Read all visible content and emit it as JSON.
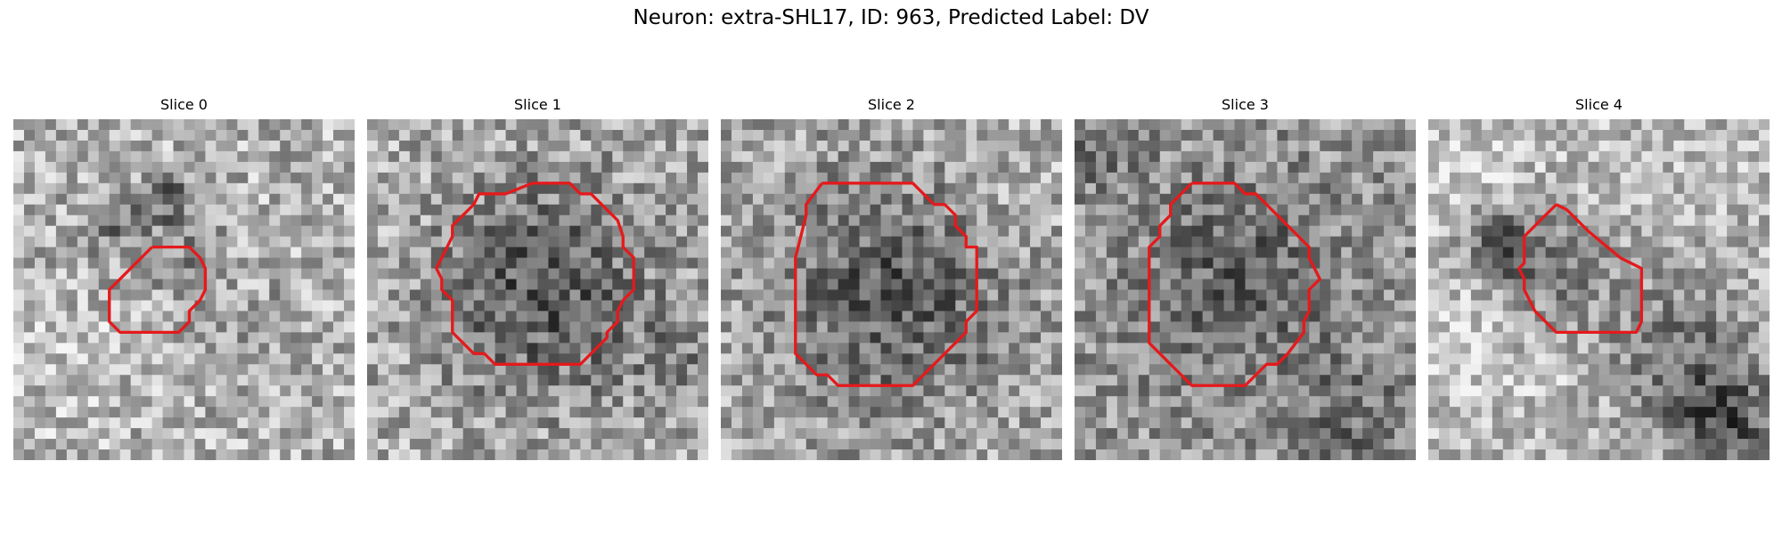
{
  "figure": {
    "title": "Neuron: extra-SHL17, ID: 963, Predicted Label: DV"
  },
  "panels": [
    {
      "title": "Slice 0"
    },
    {
      "title": "Slice 1"
    },
    {
      "title": "Slice 2"
    },
    {
      "title": "Slice 3"
    },
    {
      "title": "Slice 4"
    }
  ],
  "colors": {
    "contour": "#e41a1c",
    "background": "#ffffff"
  }
}
